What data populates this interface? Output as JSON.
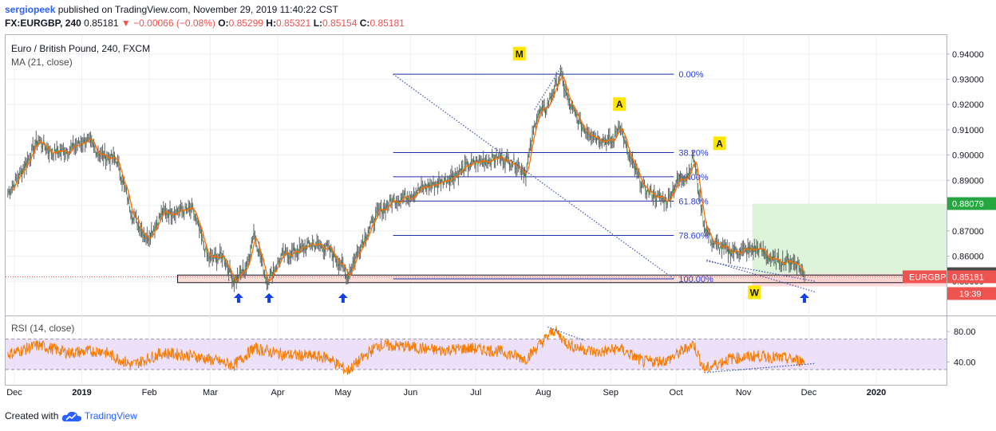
{
  "header": {
    "user": "sergiopeek",
    "published": "published on TradingView.com, November 29, 2019 11:40:22 CST",
    "symbol": "FX:EURGBP, 240",
    "last": "0.85181",
    "change": "−0.00066 (−0.08%)",
    "open_label": "O:",
    "open": "0.85299",
    "high_label": "H:",
    "high": "0.85321",
    "low_label": "L:",
    "low": "0.85154",
    "close_label": "C:",
    "close": "0.85181"
  },
  "legend": {
    "title": "Euro / British Pound, 240, FXCM",
    "ma": "MA (21, close)",
    "rsi": "RSI (14, close)"
  },
  "footer": {
    "created_with": "Created with",
    "brand": "TradingView"
  },
  "colors": {
    "price_line": "#4a4a4a",
    "ma_line": "#ff6d00",
    "rsi_line": "#f57c00",
    "fib_line": "#1e2ea8",
    "trend_dotted": "#3f51b5",
    "up_arrow": "#1240e8",
    "label_bg": "#ffe600",
    "rsi_band": "#e9d8f8",
    "target_zone": "#d9f2d6",
    "stop_zone": "#ffd6d6",
    "support_box": "#fbd2cb",
    "price_badge": "#ef5350",
    "target_badge": "#26a641"
  },
  "chart_data": {
    "type": "line",
    "ylim": [
      0.8365,
      0.9475
    ],
    "yticks": [
      "0.94000",
      "0.93000",
      "0.92000",
      "0.91000",
      "0.90000",
      "0.89000",
      "0.88000",
      "0.87000",
      "0.86000",
      "0.85000"
    ],
    "xticks": [
      "Dec",
      "2019",
      "Feb",
      "Mar",
      "Apr",
      "May",
      "Jun",
      "Jul",
      "Aug",
      "Sep",
      "Oct",
      "Nov",
      "Dec",
      "2020"
    ],
    "price_path": [
      [
        "2018-11-28",
        0.885
      ],
      [
        "2018-12-04",
        0.893
      ],
      [
        "2018-12-12",
        0.906
      ],
      [
        "2018-12-18",
        0.901
      ],
      [
        "2018-12-26",
        0.902
      ],
      [
        "2019-01-03",
        0.906
      ],
      [
        "2019-01-10",
        0.9
      ],
      [
        "2019-01-17",
        0.898
      ],
      [
        "2019-01-24",
        0.877
      ],
      [
        "2019-01-31",
        0.867
      ],
      [
        "2019-02-07",
        0.877
      ],
      [
        "2019-02-14",
        0.878
      ],
      [
        "2019-02-21",
        0.878
      ],
      [
        "2019-02-28",
        0.859
      ],
      [
        "2019-03-07",
        0.86
      ],
      [
        "2019-03-12",
        0.85
      ],
      [
        "2019-03-18",
        0.856
      ],
      [
        "2019-03-21",
        0.87
      ],
      [
        "2019-03-27",
        0.85
      ],
      [
        "2019-04-03",
        0.86
      ],
      [
        "2019-04-10",
        0.862
      ],
      [
        "2019-04-17",
        0.865
      ],
      [
        "2019-04-24",
        0.863
      ],
      [
        "2019-04-30",
        0.857
      ],
      [
        "2019-05-03",
        0.852
      ],
      [
        "2019-05-10",
        0.866
      ],
      [
        "2019-05-17",
        0.877
      ],
      [
        "2019-05-24",
        0.882
      ],
      [
        "2019-05-31",
        0.884
      ],
      [
        "2019-06-07",
        0.887
      ],
      [
        "2019-06-14",
        0.889
      ],
      [
        "2019-06-21",
        0.892
      ],
      [
        "2019-06-28",
        0.896
      ],
      [
        "2019-07-05",
        0.898
      ],
      [
        "2019-07-12",
        0.899
      ],
      [
        "2019-07-19",
        0.897
      ],
      [
        "2019-07-24",
        0.893
      ],
      [
        "2019-07-29",
        0.916
      ],
      [
        "2019-08-02",
        0.918
      ],
      [
        "2019-08-06",
        0.926
      ],
      [
        "2019-08-09",
        0.932
      ],
      [
        "2019-08-13",
        0.92
      ],
      [
        "2019-08-19",
        0.911
      ],
      [
        "2019-08-26",
        0.907
      ],
      [
        "2019-09-02",
        0.905
      ],
      [
        "2019-09-05",
        0.913
      ],
      [
        "2019-09-09",
        0.9
      ],
      [
        "2019-09-16",
        0.887
      ],
      [
        "2019-09-23",
        0.883
      ],
      [
        "2019-09-27",
        0.882
      ],
      [
        "2019-10-01",
        0.889
      ],
      [
        "2019-10-07",
        0.893
      ],
      [
        "2019-10-09",
        0.9
      ],
      [
        "2019-10-11",
        0.888
      ],
      [
        "2019-10-14",
        0.872
      ],
      [
        "2019-10-18",
        0.865
      ],
      [
        "2019-10-25",
        0.862
      ],
      [
        "2019-11-01",
        0.862
      ],
      [
        "2019-11-08",
        0.863
      ],
      [
        "2019-11-15",
        0.858
      ],
      [
        "2019-11-22",
        0.858
      ],
      [
        "2019-11-26",
        0.857
      ],
      [
        "2019-11-29",
        0.8518
      ]
    ],
    "ma_period": 21,
    "rsi": {
      "period": 14,
      "ylim": [
        10,
        100
      ],
      "levels": [
        70,
        30
      ],
      "yticks": [
        "80.00",
        "40.00"
      ],
      "path": [
        [
          "2018-11-28",
          50
        ],
        [
          "2018-12-12",
          62
        ],
        [
          "2018-12-26",
          52
        ],
        [
          "2019-01-10",
          55
        ],
        [
          "2019-01-24",
          36
        ],
        [
          "2019-02-07",
          52
        ],
        [
          "2019-02-21",
          48
        ],
        [
          "2019-03-12",
          36
        ],
        [
          "2019-03-21",
          58
        ],
        [
          "2019-04-03",
          50
        ],
        [
          "2019-04-24",
          46
        ],
        [
          "2019-05-03",
          28
        ],
        [
          "2019-05-17",
          62
        ],
        [
          "2019-05-31",
          60
        ],
        [
          "2019-06-14",
          55
        ],
        [
          "2019-06-28",
          58
        ],
        [
          "2019-07-12",
          54
        ],
        [
          "2019-07-24",
          44
        ],
        [
          "2019-08-06",
          82
        ],
        [
          "2019-08-13",
          62
        ],
        [
          "2019-08-26",
          52
        ],
        [
          "2019-09-05",
          58
        ],
        [
          "2019-09-16",
          40
        ],
        [
          "2019-09-27",
          42
        ],
        [
          "2019-10-09",
          64
        ],
        [
          "2019-10-14",
          30
        ],
        [
          "2019-10-25",
          44
        ],
        [
          "2019-11-08",
          48
        ],
        [
          "2019-11-22",
          44
        ],
        [
          "2019-11-29",
          41
        ]
      ]
    },
    "fibonacci": {
      "from_date": "2019-05-24",
      "to_date": "2019-09-30",
      "levels": [
        {
          "label": "0.00%",
          "value": 0.932
        },
        {
          "label": "38.20%",
          "value": 0.901
        },
        {
          "label": "50.00%",
          "value": 0.8914
        },
        {
          "label": "61.80%",
          "value": 0.8818
        },
        {
          "label": "78.60%",
          "value": 0.8682
        },
        {
          "label": "100.00%",
          "value": 0.851
        }
      ]
    },
    "price_trendlines": [
      [
        [
          "2019-05-24",
          0.932
        ],
        [
          "2019-09-30",
          0.851
        ]
      ],
      [
        [
          "2019-07-28",
          0.918
        ],
        [
          "2019-08-09",
          0.9345
        ]
      ],
      [
        [
          "2019-10-15",
          0.8585
        ],
        [
          "2019-12-04",
          0.8458
        ]
      ],
      [
        [
          "2019-10-15",
          0.858
        ],
        [
          "2019-12-04",
          0.85
        ]
      ]
    ],
    "rsi_trendlines": [
      [
        [
          "2019-08-03",
          86
        ],
        [
          "2019-08-20",
          68
        ]
      ],
      [
        [
          "2019-10-14",
          26
        ],
        [
          "2019-12-04",
          38
        ]
      ]
    ],
    "support_box": {
      "from": "2019-02-14",
      "to": "2020-01-15",
      "top": 0.8525,
      "bottom": 0.8495
    },
    "position": {
      "from": "2019-11-05",
      "to": "2020-02-10",
      "entry": 0.853,
      "target": 0.8808,
      "stop": 0.848
    },
    "labels": [
      {
        "text": "M",
        "date": "2019-07-21",
        "value": 0.94
      },
      {
        "text": "A",
        "date": "2019-09-05",
        "value": 0.92
      },
      {
        "text": "A",
        "date": "2019-10-21",
        "value": 0.9045
      },
      {
        "text": "W",
        "date": "2019-11-06",
        "value": 0.8455
      }
    ],
    "up_arrows": [
      "2019-03-14",
      "2019-03-28",
      "2019-05-01",
      "2019-11-29"
    ],
    "price_badges": [
      {
        "text": "0.88079",
        "value": 0.88079,
        "kind": "target"
      },
      {
        "text": "0.85304",
        "value": 0.85304,
        "kind": "entry"
      },
      {
        "text": "0.85181",
        "value": 0.85181,
        "kind": "last"
      }
    ],
    "symbol_badge": "EURGBP",
    "countdown": "19:39"
  }
}
